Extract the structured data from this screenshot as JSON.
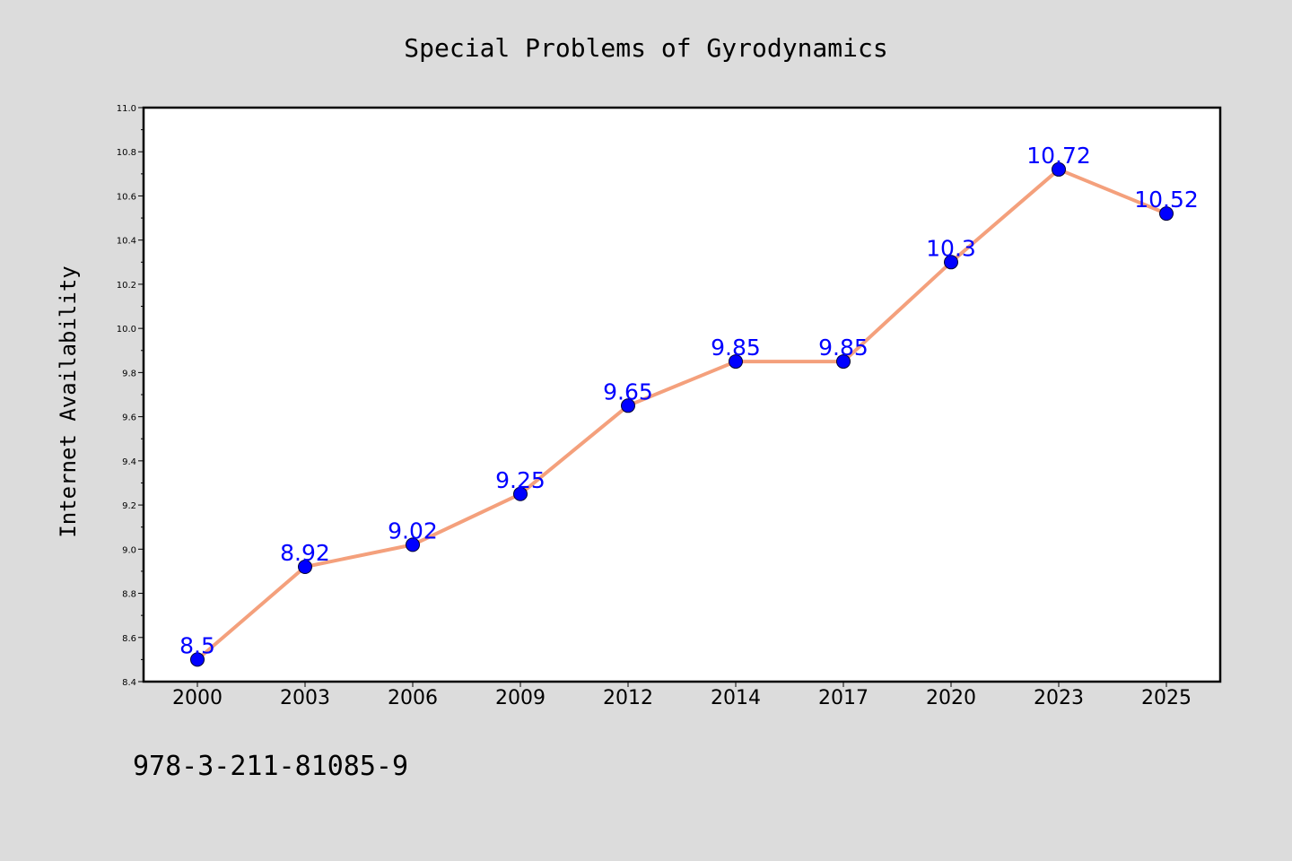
{
  "chart_data": {
    "type": "line",
    "title": "Special Problems of Gyrodynamics",
    "xlabel": "",
    "ylabel": "Internet Availability",
    "categories": [
      "2000",
      "2003",
      "2006",
      "2009",
      "2012",
      "2014",
      "2017",
      "2020",
      "2023",
      "2025"
    ],
    "series": [
      {
        "values": [
          8.5,
          8.92,
          9.02,
          9.25,
          9.65,
          9.85,
          9.85,
          10.3,
          10.72,
          10.52
        ]
      }
    ],
    "data_labels": [
      "8.5",
      "8.92",
      "9.02",
      "9.25",
      "9.65",
      "9.85",
      "9.85",
      "10.3",
      "10.72",
      "10.52"
    ],
    "ylim": [
      8.4,
      11.0
    ],
    "y_ticks": [
      "8.4",
      "8.6",
      "8.8",
      "9.0",
      "9.2",
      "9.4",
      "9.6",
      "9.8",
      "10.0",
      "10.2",
      "10.4",
      "10.6",
      "10.8",
      "11.0"
    ],
    "grid": false,
    "colors": {
      "line": "#f4a07c",
      "marker": "#0000ff",
      "data_label": "#0000ff",
      "plot_background": "#ffffff",
      "figure_background": "#dcdcdc"
    }
  },
  "footer": {
    "isbn": "978-3-211-81085-9"
  }
}
